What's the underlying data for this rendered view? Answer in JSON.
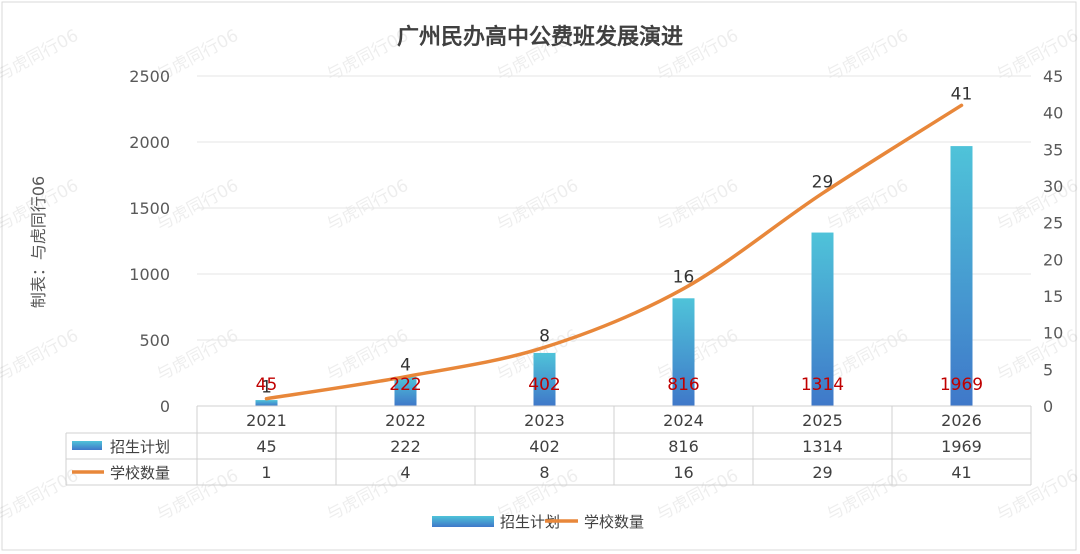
{
  "watermark_text": "与虎同行06",
  "ylabel": "制表：与虎同行06",
  "colors": {
    "bar_top": "#4FC3D9",
    "bar_bottom": "#3F78C9",
    "line": "#E8873A",
    "bar_label": "#C00000",
    "line_label": "#333333",
    "grid": "#e6e6e6"
  },
  "chart_data": {
    "type": "bar",
    "title": "广州民办高中公费班发展演进",
    "categories": [
      "2021",
      "2022",
      "2023",
      "2024",
      "2025",
      "2026"
    ],
    "series": [
      {
        "name": "招生计划",
        "type": "bar",
        "axis": "left",
        "values": [
          45,
          222,
          402,
          816,
          1314,
          1969
        ]
      },
      {
        "name": "学校数量",
        "type": "line",
        "axis": "right",
        "values": [
          1,
          4,
          8,
          16,
          29,
          41
        ]
      }
    ],
    "y_left": {
      "min": 0,
      "max": 2500,
      "ticks": [
        "0",
        "500",
        "1000",
        "1500",
        "2000",
        "2500"
      ]
    },
    "y_right": {
      "min": 0,
      "max": 45,
      "ticks": [
        "0",
        "5",
        "10",
        "15",
        "20",
        "25",
        "30",
        "35",
        "40",
        "45"
      ]
    },
    "grid": true,
    "data_table": true,
    "legend_position": "bottom"
  }
}
